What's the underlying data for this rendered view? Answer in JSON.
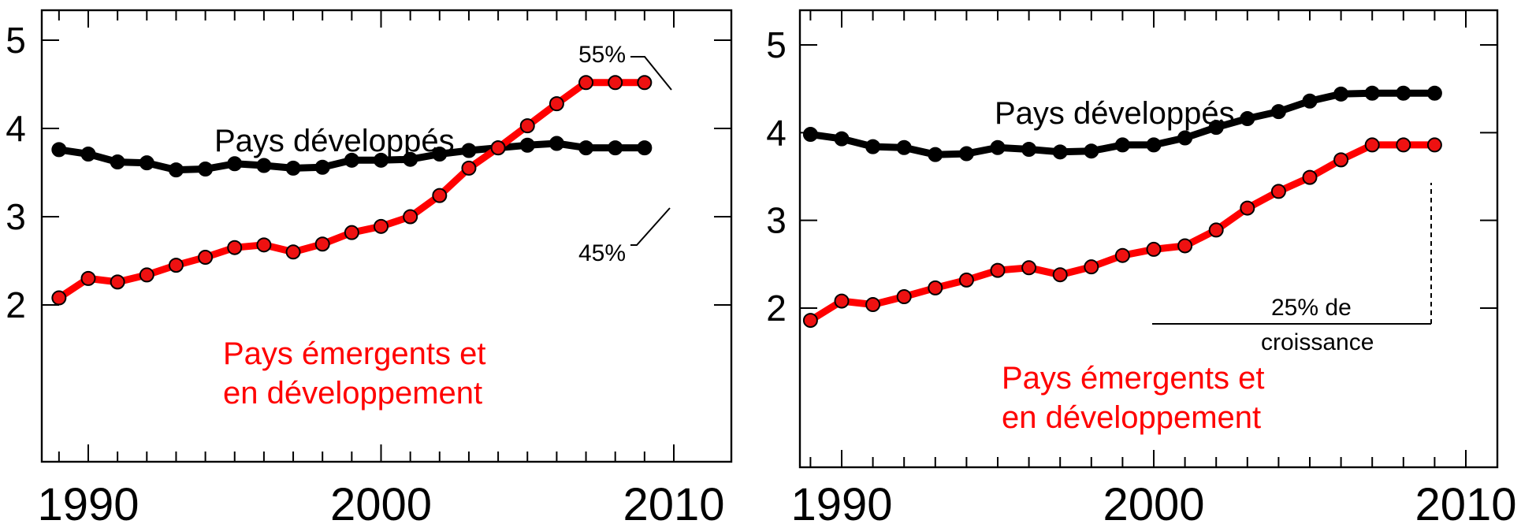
{
  "colors": {
    "developed": "#000000",
    "emerging": "#ff0000",
    "emerging_marker": "#ee1111"
  },
  "chart_data": [
    {
      "type": "line",
      "title": "",
      "xlabel": "",
      "ylabel": "",
      "xlim": [
        1988.5,
        2010.5
      ],
      "ylim": [
        1.2,
        5.5
      ],
      "x_ticks": [
        1990,
        2000,
        2010
      ],
      "y_ticks": [
        2,
        3,
        4,
        5
      ],
      "grid": false,
      "x": [
        1989,
        1990,
        1991,
        1992,
        1993,
        1994,
        1995,
        1996,
        1997,
        1998,
        1999,
        2000,
        2001,
        2002,
        2003,
        2004,
        2005,
        2006,
        2007,
        2008,
        2009
      ],
      "series": [
        {
          "name": "Pays développés",
          "color": "#000000",
          "values": [
            3.76,
            3.71,
            3.62,
            3.61,
            3.53,
            3.54,
            3.6,
            3.58,
            3.55,
            3.56,
            3.64,
            3.64,
            3.65,
            3.71,
            3.75,
            3.78,
            3.81,
            3.83,
            3.78,
            3.78,
            3.78
          ]
        },
        {
          "name": "Pays émergents et en développement",
          "color": "#ff0000",
          "values": [
            2.08,
            2.3,
            2.26,
            2.34,
            2.45,
            2.54,
            2.65,
            2.68,
            2.6,
            2.69,
            2.82,
            2.89,
            3.0,
            3.24,
            3.55,
            3.78,
            4.03,
            4.28,
            4.52,
            4.52,
            4.52
          ]
        }
      ],
      "labels": {
        "developed_line1": "Pays développés",
        "emerging_line1": "Pays émergents et",
        "emerging_line2": "en développement"
      },
      "annotations": {
        "top_pct": "55%",
        "bottom_pct": "45%"
      },
      "x_tick_labels": [
        "1990",
        "2000",
        "2010"
      ],
      "y_tick_labels": [
        "2",
        "3",
        "4",
        "5"
      ]
    },
    {
      "type": "line",
      "title": "",
      "xlabel": "",
      "ylabel": "",
      "xlim": [
        1988.5,
        2010.5
      ],
      "ylim": [
        1.2,
        5.5
      ],
      "x_ticks": [
        1990,
        2000,
        2010
      ],
      "y_ticks": [
        2,
        3,
        4,
        5
      ],
      "grid": false,
      "x": [
        1989,
        1990,
        1991,
        1992,
        1993,
        1994,
        1995,
        1996,
        1997,
        1998,
        1999,
        2000,
        2001,
        2002,
        2003,
        2004,
        2005,
        2006,
        2007,
        2008,
        2009
      ],
      "series": [
        {
          "name": "Pays développés",
          "color": "#000000",
          "values": [
            3.98,
            3.93,
            3.84,
            3.83,
            3.75,
            3.76,
            3.83,
            3.81,
            3.78,
            3.79,
            3.86,
            3.86,
            3.94,
            4.06,
            4.16,
            4.24,
            4.36,
            4.44,
            4.45,
            4.45,
            4.45
          ]
        },
        {
          "name": "Pays émergents et en développement",
          "color": "#ff0000",
          "values": [
            1.86,
            2.08,
            2.04,
            2.13,
            2.23,
            2.32,
            2.43,
            2.46,
            2.38,
            2.47,
            2.6,
            2.67,
            2.71,
            2.89,
            3.14,
            3.33,
            3.49,
            3.69,
            3.86,
            3.86,
            3.86
          ]
        }
      ],
      "labels": {
        "developed_line1": "Pays développés",
        "emerging_line1": "Pays émergents et",
        "emerging_line2": "en développement"
      },
      "annotations": {
        "growth_line1": "25% de",
        "growth_line2": "croissance"
      },
      "x_tick_labels": [
        "1990",
        "2000",
        "2010"
      ],
      "y_tick_labels": [
        "2",
        "3",
        "4",
        "5"
      ]
    }
  ]
}
